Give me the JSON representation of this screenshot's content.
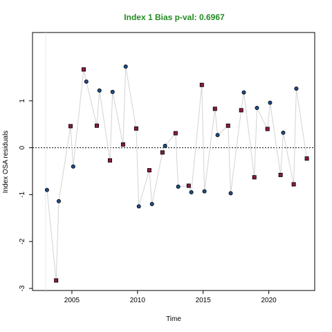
{
  "chart_data": {
    "type": "scatter",
    "title": "Index 1 Bias p-val: 0.6967",
    "xlabel": "Time",
    "ylabel": "Index OSA residuals",
    "xlim": [
      2002,
      2023.5
    ],
    "ylim": [
      -3,
      2
    ],
    "x_ticks": [
      2005,
      2010,
      2015,
      2020
    ],
    "y_ticks": [
      -3,
      -2,
      -1,
      0,
      1
    ],
    "zero_line": 0,
    "vertical_ref_line": 2003,
    "colors": {
      "title": "#228B22",
      "line": "#d3d3d3",
      "series_a_fill": "#1f4e8c",
      "series_b_fill": "#8b1a3e",
      "marker_edge": "#000000"
    },
    "series": [
      {
        "marker": "circle",
        "x": [
          2003.1,
          2004.0,
          2005.1,
          2006.1,
          2007.1,
          2008.1,
          2009.1,
          2010.1,
          2011.1,
          2012.1,
          2013.1,
          2014.1,
          2015.1,
          2016.1,
          2017.1,
          2018.1,
          2019.1,
          2020.1,
          2021.1,
          2022.1
        ],
        "y": [
          -0.9,
          -1.14,
          -0.4,
          1.41,
          1.22,
          1.19,
          1.73,
          -1.25,
          -1.2,
          0.04,
          -0.83,
          -0.95,
          -0.93,
          0.27,
          -0.97,
          1.18,
          0.85,
          0.96,
          0.32,
          1.26
        ]
      },
      {
        "marker": "square",
        "x": [
          2003.8,
          2004.9,
          2005.9,
          2006.9,
          2007.9,
          2008.9,
          2009.9,
          2010.9,
          2011.9,
          2012.9,
          2013.9,
          2014.9,
          2015.9,
          2016.9,
          2017.9,
          2018.9,
          2019.9,
          2020.9,
          2021.9,
          2022.9
        ],
        "y": [
          -2.83,
          0.46,
          1.67,
          0.47,
          -0.27,
          0.07,
          0.41,
          -0.48,
          -0.1,
          0.31,
          -0.81,
          1.34,
          0.83,
          0.47,
          0.8,
          -0.63,
          0.4,
          -0.58,
          -0.78,
          -0.23
        ]
      }
    ]
  }
}
